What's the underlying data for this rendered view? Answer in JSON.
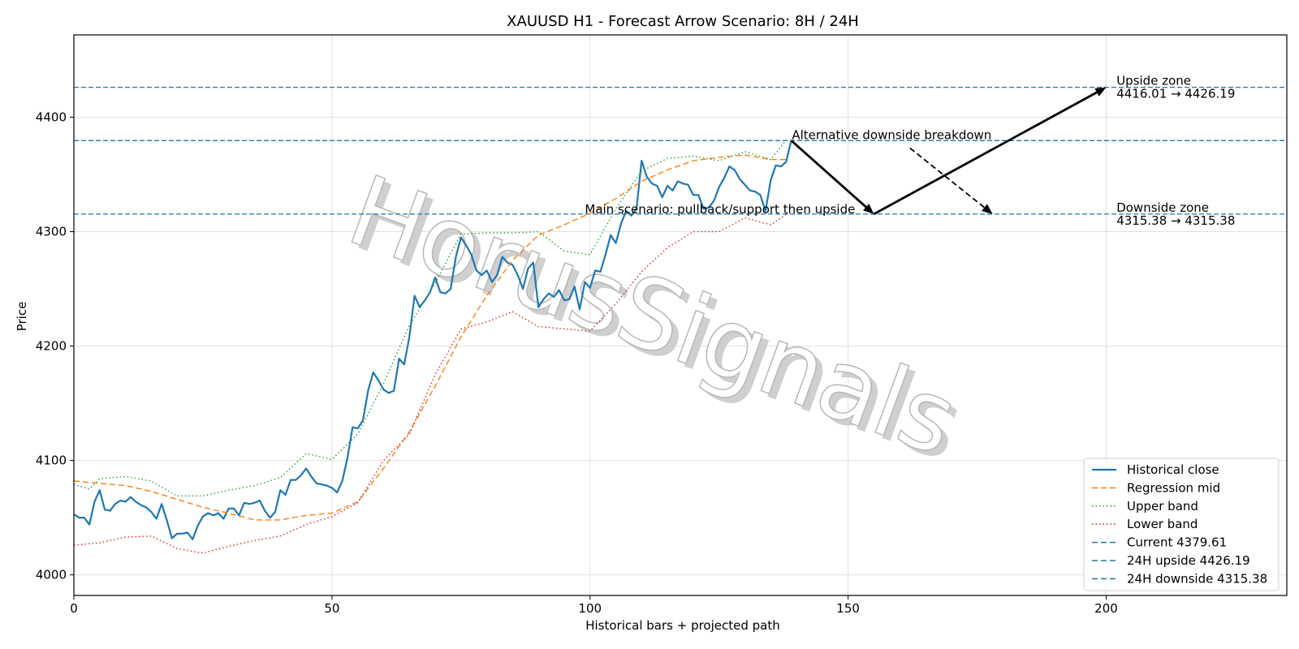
{
  "chart_data": {
    "type": "line",
    "title": "XAUUSD H1 - Forecast Arrow Scenario: 8H / 24H",
    "xlabel": "Historical bars + projected path",
    "ylabel": "Price",
    "xlim": [
      0,
      235
    ],
    "ylim": [
      3982,
      4472
    ],
    "xticks": [
      0,
      50,
      100,
      150,
      200
    ],
    "yticks": [
      4000,
      4100,
      4200,
      4300,
      4400
    ],
    "grid": true,
    "legend_position": "bottom-right",
    "watermark": "HorusSignals",
    "colors": {
      "close": "#1f77b4",
      "mid": "#ff7f0e",
      "upper": "#2ca02c",
      "lower": "#d62728",
      "level": "#1f77b4",
      "arrow": "#000000"
    },
    "series": [
      {
        "name": "Historical close",
        "style": "solid",
        "x": [
          0,
          1,
          2,
          3,
          4,
          5,
          6,
          7,
          8,
          9,
          10,
          11,
          12,
          13,
          14,
          15,
          16,
          17,
          18,
          19,
          20,
          21,
          22,
          23,
          24,
          25,
          26,
          27,
          28,
          29,
          30,
          31,
          32,
          33,
          34,
          35,
          36,
          37,
          38,
          39,
          40,
          41,
          42,
          43,
          44,
          45,
          46,
          47,
          48,
          49,
          50,
          51,
          52,
          53,
          54,
          55,
          56,
          57,
          58,
          59,
          60,
          61,
          62,
          63,
          64,
          65,
          66,
          67,
          68,
          69,
          70,
          71,
          72,
          73,
          74,
          75,
          76,
          77,
          78,
          79,
          80,
          81,
          82,
          83,
          84,
          85,
          86,
          87,
          88,
          89,
          90,
          91,
          92,
          93,
          94,
          95,
          96,
          97,
          98,
          99,
          100,
          101,
          102,
          103,
          104,
          105,
          106,
          107,
          108,
          109,
          110,
          111,
          112,
          113,
          114,
          115,
          116,
          117,
          118,
          119,
          120,
          121,
          122,
          123,
          124,
          125,
          126,
          127,
          128,
          129,
          130,
          131,
          132,
          133,
          134,
          135,
          136,
          137,
          138,
          139
        ],
        "values": [
          4053,
          4050,
          4050,
          4044,
          4064,
          4074,
          4057,
          4056,
          4062,
          4065,
          4064,
          4068,
          4064,
          4061,
          4059,
          4055,
          4049,
          4062,
          4048,
          4032,
          4036,
          4036,
          4037,
          4031,
          4043,
          4051,
          4054,
          4052,
          4054,
          4049,
          4058,
          4058,
          4052,
          4063,
          4062,
          4063,
          4065,
          4056,
          4050,
          4055,
          4074,
          4070,
          4083,
          4083,
          4087,
          4093,
          4086,
          4080,
          4079,
          4078,
          4076,
          4072,
          4082,
          4102,
          4129,
          4128,
          4135,
          4161,
          4177,
          4170,
          4162,
          4159,
          4161,
          4189,
          4184,
          4208,
          4244,
          4234,
          4240,
          4247,
          4260,
          4247,
          4246,
          4250,
          4278,
          4295,
          4288,
          4280,
          4266,
          4262,
          4266,
          4256,
          4262,
          4278,
          4273,
          4271,
          4262,
          4250,
          4268,
          4273,
          4234,
          4241,
          4246,
          4243,
          4249,
          4240,
          4241,
          4252,
          4232,
          4256,
          4251,
          4266,
          4265,
          4280,
          4297,
          4290,
          4307,
          4318,
          4314,
          4320,
          4362,
          4348,
          4342,
          4340,
          4330,
          4340,
          4336,
          4344,
          4342,
          4341,
          4332,
          4332,
          4320,
          4321,
          4327,
          4339,
          4347,
          4357,
          4354,
          4346,
          4341,
          4336,
          4335,
          4332,
          4318,
          4345,
          4358,
          4357,
          4361,
          4380
        ]
      },
      {
        "name": "Regression mid",
        "style": "dashed",
        "x": [
          0,
          5,
          10,
          15,
          20,
          25,
          30,
          35,
          40,
          45,
          50,
          55,
          60,
          65,
          70,
          75,
          80,
          85,
          90,
          95,
          100,
          105,
          110,
          115,
          120,
          125,
          130,
          135,
          138
        ],
        "values": [
          4082,
          4080,
          4078,
          4073,
          4066,
          4059,
          4054,
          4048,
          4048,
          4052,
          4054,
          4064,
          4093,
          4125,
          4165,
          4208,
          4244,
          4275,
          4297,
          4306,
          4316,
          4329,
          4344,
          4354,
          4362,
          4365,
          4367,
          4363,
          4363
        ]
      },
      {
        "name": "Upper band",
        "style": "dotted",
        "x": [
          0,
          3,
          5,
          10,
          15,
          20,
          25,
          30,
          35,
          40,
          45,
          50,
          55,
          60,
          65,
          70,
          75,
          80,
          85,
          90,
          95,
          100,
          105,
          110,
          115,
          120,
          125,
          130,
          135,
          138
        ],
        "values": [
          4079,
          4075,
          4084,
          4086,
          4082,
          4069,
          4069,
          4074,
          4078,
          4085,
          4106,
          4101,
          4123,
          4167,
          4218,
          4255,
          4298,
          4299,
          4299,
          4300,
          4283,
          4280,
          4320,
          4353,
          4364,
          4366,
          4362,
          4370,
          4363,
          4380
        ]
      },
      {
        "name": "Lower band",
        "style": "dotted",
        "x": [
          0,
          5,
          10,
          15,
          20,
          25,
          30,
          35,
          40,
          45,
          50,
          55,
          60,
          65,
          70,
          75,
          80,
          85,
          90,
          95,
          100,
          105,
          110,
          115,
          120,
          125,
          130,
          135,
          138
        ],
        "values": [
          4026,
          4028,
          4033,
          4034,
          4023,
          4019,
          4025,
          4030,
          4034,
          4044,
          4051,
          4063,
          4100,
          4123,
          4175,
          4215,
          4221,
          4230,
          4217,
          4215,
          4213,
          4237,
          4265,
          4286,
          4300,
          4300,
          4312,
          4306,
          4315
        ]
      }
    ],
    "levels": [
      {
        "name": "Current 4379.61",
        "value": 4379.61
      },
      {
        "name": "24H upside 4426.19",
        "value": 4426.19
      },
      {
        "name": "24H downside 4315.38",
        "value": 4315.38
      }
    ],
    "arrows": [
      {
        "label": "Main scenario: pullback/support then upside",
        "style": "solid",
        "points": [
          [
            139,
            4379.61
          ],
          [
            155,
            4315.38
          ],
          [
            200,
            4426.19
          ]
        ]
      },
      {
        "label": "Alternative downside breakdown",
        "style": "dashed",
        "points": [
          [
            162,
            4373
          ],
          [
            178,
            4315.38
          ]
        ]
      }
    ],
    "zone_labels": [
      {
        "title": "Upside zone",
        "range": "4416.01 → 4426.19"
      },
      {
        "title": "Downside zone",
        "range": "4315.38 → 4315.38"
      }
    ]
  }
}
